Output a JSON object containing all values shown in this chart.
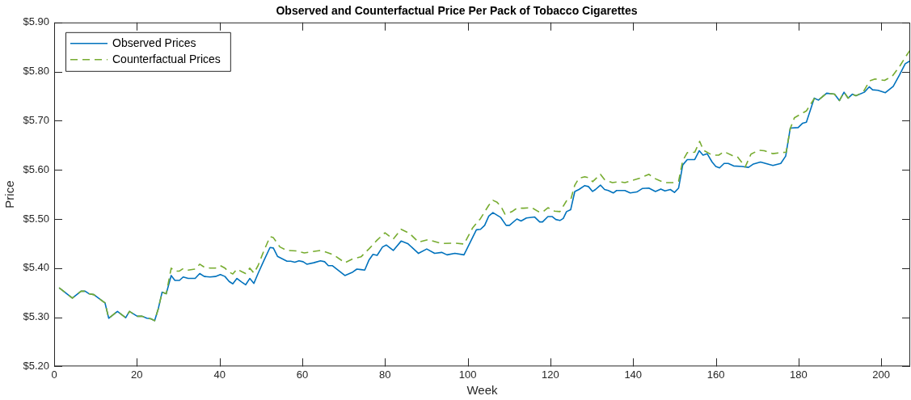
{
  "chart_data": {
    "type": "line",
    "title": "Observed and Counterfactual Price Per Pack of Tobacco Cigarettes",
    "xlabel": "Week",
    "ylabel": "Price",
    "xlim": [
      0,
      207
    ],
    "xticks": [
      0,
      20,
      40,
      60,
      80,
      100,
      120,
      140,
      160,
      180,
      200
    ],
    "ylim": [
      5.2,
      5.9
    ],
    "yticks": [
      {
        "value": 5.2,
        "label": "$5.20"
      },
      {
        "value": 5.3,
        "label": "$5.30"
      },
      {
        "value": 5.4,
        "label": "$5.40"
      },
      {
        "value": 5.5,
        "label": "$5.50"
      },
      {
        "value": 5.6,
        "label": "$5.60"
      },
      {
        "value": 5.7,
        "label": "$5.70"
      },
      {
        "value": 5.8,
        "label": "$5.80"
      },
      {
        "value": 5.9,
        "label": "$5.90"
      }
    ],
    "grid": false,
    "legend": "top left",
    "marker": "none",
    "series": [
      {
        "name": "Observed Prices",
        "color": "#0072bd",
        "line_style": "solid",
        "x": [
          1.2,
          4.4,
          6.5,
          7.5,
          8.4,
          9.6,
          12.3,
          13.2,
          15.3,
          17.3,
          18.2,
          20.1,
          21.3,
          22.4,
          23.4,
          24.3,
          25.2,
          26.1,
          27.1,
          28.3,
          29.2,
          30.3,
          31.2,
          32.4,
          34.1,
          35.2,
          36.3,
          37.7,
          39,
          40.2,
          41.3,
          42.3,
          43.2,
          44.2,
          45.3,
          46.3,
          47.3,
          48.3,
          49.3,
          50.7,
          52.2,
          53,
          54,
          56.3,
          57.2,
          58.2,
          59.2,
          60.2,
          61.1,
          62.8,
          64.4,
          65.4,
          66.3,
          67.3,
          70.3,
          72.2,
          73.2,
          74.2,
          75.1,
          76.1,
          77.1,
          78.1,
          79.4,
          80.3,
          82,
          83.9,
          85.5,
          88.1,
          90.1,
          92,
          93.7,
          95,
          96.9,
          99.1,
          102.1,
          103.1,
          104.1,
          105.1,
          106.1,
          108,
          109.3,
          110.1,
          111.9,
          112.9,
          114.2,
          116.2,
          117.4,
          118.1,
          119.4,
          120.4,
          121.3,
          122.3,
          123.1,
          123.9,
          124.9,
          125.9,
          126.9,
          128.3,
          129.2,
          130.2,
          130.9,
          132.1,
          133.1,
          134,
          135.2,
          136,
          138,
          139.3,
          140.9,
          142.2,
          143.8,
          145.4,
          146.7,
          147.7,
          149,
          150,
          151,
          152,
          153.1,
          154.9,
          156,
          156.9,
          157.9,
          159.1,
          160,
          160.9,
          162,
          163,
          164.3,
          166.3,
          167.9,
          169.1,
          170.8,
          173.8,
          175.7,
          176.9,
          178,
          179.9,
          181,
          181.9,
          183.8,
          184.8,
          186.8,
          188.7,
          189.9,
          191,
          192,
          193,
          193.9,
          195.9,
          197.1,
          197.9,
          199.2,
          201,
          202.9,
          204.4,
          205.8,
          207
        ],
        "values": [
          5.36,
          5.339,
          5.353,
          5.353,
          5.348,
          5.346,
          5.329,
          5.298,
          5.312,
          5.299,
          5.312,
          5.302,
          5.302,
          5.298,
          5.297,
          5.293,
          5.318,
          5.351,
          5.348,
          5.385,
          5.375,
          5.375,
          5.382,
          5.379,
          5.379,
          5.389,
          5.383,
          5.382,
          5.383,
          5.387,
          5.383,
          5.373,
          5.368,
          5.379,
          5.372,
          5.366,
          5.379,
          5.369,
          5.389,
          5.415,
          5.442,
          5.441,
          5.424,
          5.414,
          5.414,
          5.412,
          5.415,
          5.413,
          5.408,
          5.411,
          5.415,
          5.413,
          5.405,
          5.405,
          5.385,
          5.392,
          5.398,
          5.397,
          5.396,
          5.416,
          5.428,
          5.426,
          5.443,
          5.447,
          5.436,
          5.455,
          5.45,
          5.43,
          5.439,
          5.43,
          5.432,
          5.427,
          5.43,
          5.427,
          5.478,
          5.479,
          5.487,
          5.506,
          5.513,
          5.503,
          5.487,
          5.487,
          5.5,
          5.496,
          5.502,
          5.504,
          5.494,
          5.494,
          5.505,
          5.505,
          5.499,
          5.497,
          5.501,
          5.515,
          5.519,
          5.556,
          5.56,
          5.568,
          5.566,
          5.556,
          5.56,
          5.569,
          5.56,
          5.558,
          5.553,
          5.558,
          5.558,
          5.553,
          5.555,
          5.562,
          5.563,
          5.556,
          5.561,
          5.557,
          5.56,
          5.554,
          5.563,
          5.61,
          5.621,
          5.621,
          5.639,
          5.63,
          5.633,
          5.616,
          5.607,
          5.604,
          5.613,
          5.613,
          5.608,
          5.607,
          5.605,
          5.612,
          5.616,
          5.609,
          5.613,
          5.628,
          5.685,
          5.686,
          5.695,
          5.697,
          5.746,
          5.742,
          5.756,
          5.754,
          5.741,
          5.758,
          5.746,
          5.754,
          5.751,
          5.758,
          5.769,
          5.763,
          5.762,
          5.757,
          5.77,
          5.793,
          5.816,
          5.822
        ]
      },
      {
        "name": "Counterfactual Prices",
        "color": "#77ac30",
        "line_style": "dashed",
        "x": [
          1.2,
          4.4,
          6.5,
          7.5,
          8.4,
          9.6,
          12.3,
          13.2,
          15.3,
          17.3,
          18.2,
          20.1,
          21.3,
          22.4,
          23.4,
          24.3,
          25.2,
          26.1,
          27.1,
          28.3,
          29.2,
          30.3,
          31.2,
          32.4,
          34.1,
          35.2,
          36.3,
          37.7,
          39,
          40.2,
          41.3,
          42.3,
          43.2,
          44.2,
          45.3,
          46.3,
          47.3,
          48.3,
          49.3,
          50.7,
          52.2,
          53,
          54.6,
          56.3,
          58.5,
          60.5,
          64.4,
          66.3,
          67.6,
          70.3,
          72.2,
          74.2,
          76.1,
          78.1,
          80,
          82,
          83.9,
          85.9,
          88.1,
          90.4,
          93.7,
          96.9,
          99.1,
          101.2,
          103.1,
          105.1,
          106.1,
          107.1,
          108,
          109,
          110.7,
          111.9,
          113.5,
          115.5,
          117.1,
          118.1,
          119.4,
          121,
          122.3,
          123.9,
          124.9,
          125.9,
          126.9,
          128.3,
          129.2,
          130.2,
          132.1,
          133.1,
          135,
          136.7,
          138,
          139.6,
          141.6,
          143.8,
          145.1,
          146.4,
          147.7,
          149.6,
          151,
          152,
          153.1,
          154.9,
          156.1,
          157,
          159.1,
          160.7,
          162,
          164.3,
          165.2,
          167.1,
          168.5,
          170.4,
          171.7,
          173.8,
          175.7,
          177,
          178,
          179,
          181.9,
          183.8,
          184.8,
          186.8,
          188.7,
          189.9,
          191,
          192,
          193,
          193.9,
          195.6,
          197.2,
          198.5,
          200.8,
          202.7,
          204.4,
          205.8,
          207
        ],
        "values": [
          5.36,
          5.339,
          5.353,
          5.353,
          5.348,
          5.346,
          5.329,
          5.298,
          5.312,
          5.299,
          5.312,
          5.302,
          5.302,
          5.298,
          5.297,
          5.293,
          5.318,
          5.351,
          5.348,
          5.4,
          5.394,
          5.394,
          5.399,
          5.396,
          5.398,
          5.408,
          5.402,
          5.4,
          5.4,
          5.405,
          5.4,
          5.392,
          5.388,
          5.398,
          5.393,
          5.389,
          5.4,
          5.39,
          5.405,
          5.435,
          5.464,
          5.462,
          5.443,
          5.436,
          5.435,
          5.431,
          5.436,
          5.431,
          5.427,
          5.411,
          5.419,
          5.423,
          5.439,
          5.457,
          5.472,
          5.459,
          5.479,
          5.471,
          5.453,
          5.458,
          5.45,
          5.451,
          5.449,
          5.482,
          5.501,
          5.528,
          5.538,
          5.534,
          5.526,
          5.51,
          5.515,
          5.522,
          5.522,
          5.523,
          5.515,
          5.514,
          5.523,
          5.516,
          5.515,
          5.537,
          5.539,
          5.569,
          5.583,
          5.586,
          5.584,
          5.576,
          5.591,
          5.58,
          5.574,
          5.576,
          5.574,
          5.578,
          5.583,
          5.591,
          5.583,
          5.578,
          5.574,
          5.574,
          5.577,
          5.619,
          5.635,
          5.636,
          5.658,
          5.64,
          5.63,
          5.63,
          5.637,
          5.628,
          5.627,
          5.606,
          5.632,
          5.64,
          5.639,
          5.633,
          5.635,
          5.636,
          5.684,
          5.706,
          5.72,
          5.745,
          5.742,
          5.756,
          5.754,
          5.741,
          5.758,
          5.746,
          5.754,
          5.751,
          5.758,
          5.781,
          5.785,
          5.782,
          5.791,
          5.81,
          5.829,
          5.844
        ]
      }
    ]
  }
}
